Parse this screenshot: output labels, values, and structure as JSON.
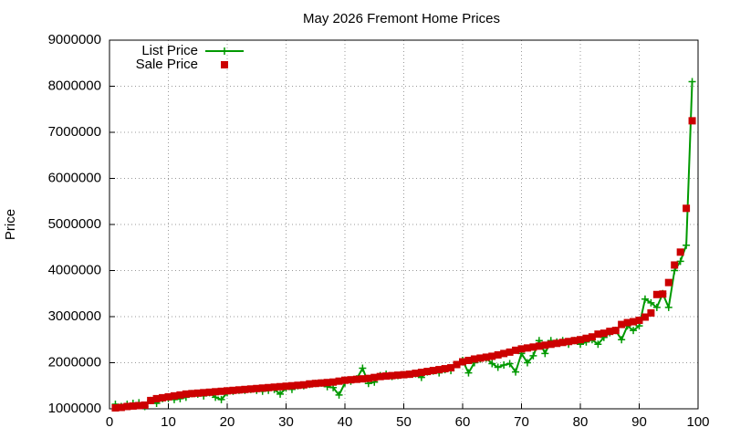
{
  "chart_data": {
    "type": "line",
    "title": "May 2026 Fremont Home Prices",
    "y_label": "Price",
    "x": [
      1,
      2,
      3,
      4,
      5,
      6,
      7,
      8,
      9,
      10,
      11,
      12,
      13,
      14,
      15,
      16,
      17,
      18,
      19,
      20,
      21,
      22,
      23,
      24,
      25,
      26,
      27,
      28,
      29,
      30,
      31,
      32,
      33,
      34,
      35,
      36,
      37,
      38,
      39,
      40,
      41,
      42,
      43,
      44,
      45,
      46,
      47,
      48,
      49,
      50,
      51,
      52,
      53,
      54,
      55,
      56,
      57,
      58,
      59,
      60,
      61,
      62,
      63,
      64,
      65,
      66,
      67,
      68,
      69,
      70,
      71,
      72,
      73,
      74,
      75,
      76,
      77,
      78,
      79,
      80,
      81,
      82,
      83,
      84,
      85,
      86,
      87,
      88,
      89,
      90,
      91,
      92,
      93,
      94,
      95,
      96,
      97,
      98,
      99
    ],
    "series": [
      {
        "name": "List Price",
        "color": "#009900",
        "style": "linespoints",
        "values": [
          1100000,
          1050000,
          1100000,
          1120000,
          1130000,
          1050000,
          1180000,
          1120000,
          1220000,
          1230000,
          1200000,
          1220000,
          1250000,
          1330000,
          1320000,
          1280000,
          1350000,
          1250000,
          1200000,
          1350000,
          1380000,
          1400000,
          1400000,
          1420000,
          1400000,
          1380000,
          1400000,
          1420000,
          1320000,
          1450000,
          1420000,
          1500000,
          1500000,
          1530000,
          1550000,
          1560000,
          1480000,
          1460000,
          1300000,
          1560000,
          1600000,
          1650000,
          1880000,
          1550000,
          1580000,
          1720000,
          1750000,
          1700000,
          1720000,
          1740000,
          1750000,
          1760000,
          1680000,
          1800000,
          1820000,
          1780000,
          1850000,
          1830000,
          1960000,
          2050000,
          1780000,
          2000000,
          2080000,
          2100000,
          1980000,
          1900000,
          1950000,
          1980000,
          1800000,
          2200000,
          2000000,
          2150000,
          2480000,
          2200000,
          2480000,
          2450000,
          2480000,
          2400000,
          2480000,
          2400000,
          2450000,
          2500000,
          2400000,
          2550000,
          2650000,
          2700000,
          2500000,
          2800000,
          2700000,
          2800000,
          3380000,
          3300000,
          3200000,
          3500000,
          3200000,
          4000000,
          4200000,
          4550000,
          8100000
        ]
      },
      {
        "name": "Sale Price",
        "color": "#cc0000",
        "style": "points",
        "values": [
          1020000,
          1030000,
          1050000,
          1060000,
          1070000,
          1080000,
          1180000,
          1220000,
          1240000,
          1260000,
          1280000,
          1300000,
          1320000,
          1330000,
          1340000,
          1350000,
          1360000,
          1370000,
          1380000,
          1390000,
          1400000,
          1410000,
          1420000,
          1430000,
          1440000,
          1450000,
          1460000,
          1470000,
          1480000,
          1490000,
          1500000,
          1510000,
          1520000,
          1540000,
          1550000,
          1560000,
          1570000,
          1580000,
          1600000,
          1620000,
          1630000,
          1640000,
          1650000,
          1660000,
          1680000,
          1700000,
          1710000,
          1720000,
          1730000,
          1740000,
          1750000,
          1770000,
          1790000,
          1810000,
          1830000,
          1850000,
          1870000,
          1890000,
          1960000,
          2020000,
          2050000,
          2080000,
          2100000,
          2120000,
          2140000,
          2170000,
          2200000,
          2230000,
          2270000,
          2300000,
          2320000,
          2340000,
          2360000,
          2380000,
          2400000,
          2420000,
          2440000,
          2460000,
          2480000,
          2500000,
          2530000,
          2560000,
          2620000,
          2640000,
          2680000,
          2700000,
          2830000,
          2870000,
          2890000,
          2920000,
          2990000,
          3080000,
          3480000,
          3490000,
          3740000,
          4120000,
          4400000,
          5350000,
          7250000
        ]
      }
    ],
    "xlim": [
      0,
      100
    ],
    "xticks": [
      0,
      10,
      20,
      30,
      40,
      50,
      60,
      70,
      80,
      90,
      100
    ],
    "ylim": [
      1000000,
      9000000
    ],
    "yticks": [
      1000000,
      2000000,
      3000000,
      4000000,
      5000000,
      6000000,
      7000000,
      8000000,
      9000000
    ],
    "grid": true,
    "legend": "top-left"
  }
}
